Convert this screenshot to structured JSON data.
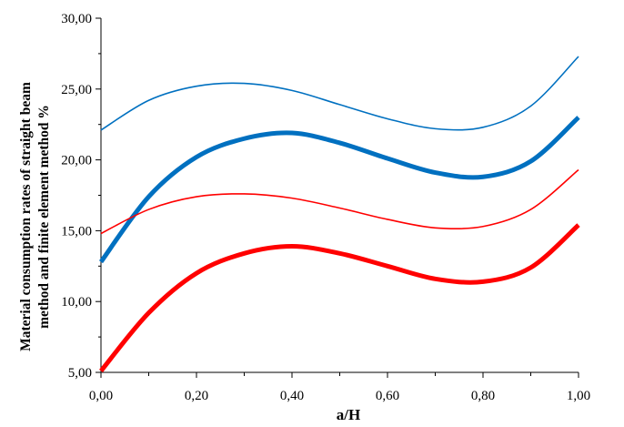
{
  "chart_data": {
    "type": "line",
    "title": "",
    "xlabel": "a/H",
    "ylabel_lines": [
      "Material consumption rates of straight beam",
      "method and finite element method  %"
    ],
    "xlim": [
      0,
      1
    ],
    "ylim": [
      5,
      30
    ],
    "x_ticks": [
      "0,00",
      "0,20",
      "0,40",
      "0,60",
      "0,80",
      "1,00"
    ],
    "y_ticks": [
      "5,00",
      "10,00",
      "15,00",
      "20,00",
      "25,00",
      "30,00"
    ],
    "grid": false,
    "legend": "none",
    "x": [
      0,
      0.1,
      0.2,
      0.3,
      0.4,
      0.5,
      0.6,
      0.7,
      0.8,
      0.9,
      1.0
    ],
    "series": [
      {
        "color": "#0070C0",
        "style": "thin",
        "values": [
          22.1,
          24.2,
          25.2,
          25.4,
          24.9,
          23.9,
          22.9,
          22.2,
          22.3,
          23.8,
          27.3
        ]
      },
      {
        "color": "#0070C0",
        "style": "thick",
        "values": [
          12.8,
          17.4,
          20.2,
          21.5,
          21.9,
          21.2,
          20.1,
          19.1,
          18.8,
          19.9,
          23.0
        ]
      },
      {
        "color": "#FF0000",
        "style": "thin",
        "values": [
          14.8,
          16.5,
          17.4,
          17.6,
          17.3,
          16.6,
          15.8,
          15.2,
          15.3,
          16.5,
          19.3
        ]
      },
      {
        "color": "#FF0000",
        "style": "thick",
        "values": [
          5.1,
          9.2,
          12.0,
          13.4,
          13.9,
          13.4,
          12.5,
          11.6,
          11.4,
          12.4,
          15.4
        ]
      }
    ]
  }
}
